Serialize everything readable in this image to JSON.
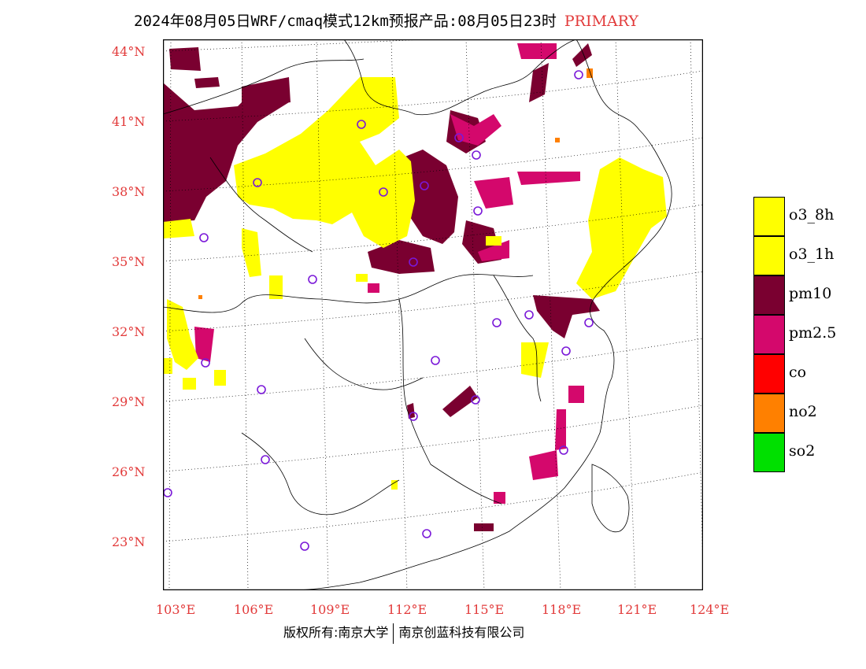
{
  "title": {
    "main": "2024年08月05日WRF/cmaq模式12km预报产品:08月05日23时",
    "tag": "PRIMARY"
  },
  "map": {
    "lat_labels": [
      "44°N",
      "41°N",
      "38°N",
      "35°N",
      "32°N",
      "29°N",
      "26°N",
      "23°N"
    ],
    "lon_labels": [
      "103°E",
      "106°E",
      "109°E",
      "112°E",
      "115°E",
      "118°E",
      "121°E",
      "124°E"
    ]
  },
  "legend": [
    {
      "label": "o3_8h",
      "color": "#ffff00"
    },
    {
      "label": "o3_1h",
      "color": "#ffff00"
    },
    {
      "label": "pm10",
      "color": "#7a0030"
    },
    {
      "label": "pm2.5",
      "color": "#d4086c"
    },
    {
      "label": "co",
      "color": "#ff0000"
    },
    {
      "label": "no2",
      "color": "#ff8000"
    },
    {
      "label": "so2",
      "color": "#00e000"
    }
  ],
  "copyright": {
    "left": "版权所有:南京大学",
    "right": "南京创蓝科技有限公司"
  },
  "colors": {
    "label_red": "#e23a3a",
    "station_marker": "#7a18d8"
  }
}
